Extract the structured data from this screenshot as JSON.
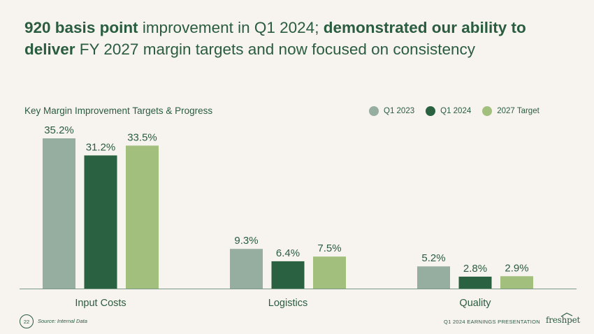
{
  "headline": {
    "part1_bold": "920 basis point",
    "part2": " improvement in Q1 2024; ",
    "part3_bold": "demonstrated our ability to deliver",
    "part4": " FY 2027 margin targets and now focused on consistency"
  },
  "chart_data": {
    "type": "bar",
    "title": "Key Margin Improvement Targets & Progress",
    "categories": [
      "Input Costs",
      "Logistics",
      "Quality"
    ],
    "series": [
      {
        "name": "Q1 2023",
        "values": [
          35.2,
          9.3,
          5.2
        ],
        "color": "#96ae9f"
      },
      {
        "name": "Q1 2024",
        "values": [
          31.2,
          6.4,
          2.8
        ],
        "color": "#2a6141"
      },
      {
        "name": "2027 Target",
        "values": [
          33.5,
          7.5,
          2.9
        ],
        "color": "#a3bf7d"
      }
    ],
    "value_suffix": "%",
    "ylim": [
      0,
      40
    ],
    "legend_position": "top-right",
    "grid": false
  },
  "footer": {
    "page_number": "22",
    "source": "Source: Internal Data",
    "presentation": "Q1 2024 EARNINGS PRESENTATION",
    "logo": "freshpet"
  }
}
